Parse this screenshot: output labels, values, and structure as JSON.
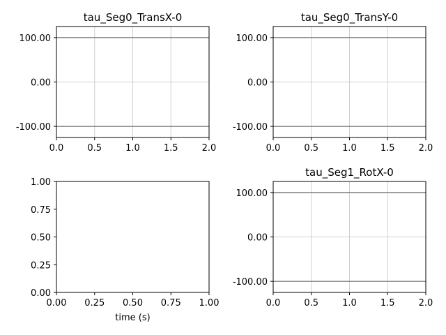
{
  "chart_data": [
    {
      "type": "line",
      "title": "tau_Seg0_TransX-0",
      "xlabel": "",
      "ylabel": "",
      "xlim": [
        0,
        2
      ],
      "ylim": [
        -125,
        125
      ],
      "xticks": [
        "0.0",
        "0.5",
        "1.0",
        "1.5",
        "2.0"
      ],
      "xtick_values": [
        0,
        0.5,
        1,
        1.5,
        2
      ],
      "yticks": [
        "100.00",
        "0.00",
        "-100.00"
      ],
      "ytick_values": [
        100,
        0,
        -100
      ],
      "grid": true,
      "series": [
        {
          "x": [
            0,
            2
          ],
          "values": [
            100,
            100
          ],
          "color": "#555555"
        },
        {
          "x": [
            0,
            2
          ],
          "values": [
            -100,
            -100
          ],
          "color": "#555555"
        }
      ]
    },
    {
      "type": "line",
      "title": "tau_Seg0_TransY-0",
      "xlabel": "",
      "ylabel": "",
      "xlim": [
        0,
        2
      ],
      "ylim": [
        -125,
        125
      ],
      "xticks": [
        "0.0",
        "0.5",
        "1.0",
        "1.5",
        "2.0"
      ],
      "xtick_values": [
        0,
        0.5,
        1,
        1.5,
        2
      ],
      "yticks": [
        "100.00",
        "0.00",
        "-100.00"
      ],
      "ytick_values": [
        100,
        0,
        -100
      ],
      "grid": true,
      "series": [
        {
          "x": [
            0,
            2
          ],
          "values": [
            100,
            100
          ],
          "color": "#555555"
        },
        {
          "x": [
            0,
            2
          ],
          "values": [
            -100,
            -100
          ],
          "color": "#555555"
        }
      ]
    },
    {
      "type": "line",
      "title": "",
      "xlabel": "time (s)",
      "ylabel": "",
      "xlim": [
        0,
        1
      ],
      "ylim": [
        0,
        1
      ],
      "xticks": [
        "0.00",
        "0.25",
        "0.50",
        "0.75",
        "1.00"
      ],
      "xtick_values": [
        0,
        0.25,
        0.5,
        0.75,
        1
      ],
      "yticks": [
        "1.00",
        "0.75",
        "0.50",
        "0.25",
        "0.00"
      ],
      "ytick_values": [
        1,
        0.75,
        0.5,
        0.25,
        0
      ],
      "grid": false,
      "series": []
    },
    {
      "type": "line",
      "title": "tau_Seg1_RotX-0",
      "xlabel": "",
      "ylabel": "",
      "xlim": [
        0,
        2
      ],
      "ylim": [
        -125,
        125
      ],
      "xticks": [
        "0.0",
        "0.5",
        "1.0",
        "1.5",
        "2.0"
      ],
      "xtick_values": [
        0,
        0.5,
        1,
        1.5,
        2
      ],
      "yticks": [
        "100.00",
        "0.00",
        "-100.00"
      ],
      "ytick_values": [
        100,
        0,
        -100
      ],
      "grid": true,
      "series": [
        {
          "x": [
            0,
            2
          ],
          "values": [
            100,
            100
          ],
          "color": "#555555"
        },
        {
          "x": [
            0,
            2
          ],
          "values": [
            -100,
            -100
          ],
          "color": "#555555"
        }
      ]
    }
  ]
}
